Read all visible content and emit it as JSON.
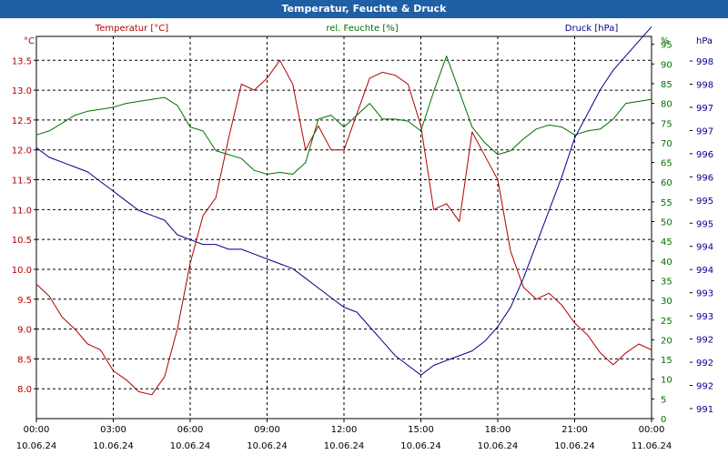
{
  "window": {
    "title": "Temperatur, Feuchte & Druck"
  },
  "chart_data": {
    "type": "line",
    "title": "Temperatur, Feuchte & Druck",
    "grid": true,
    "colors": {
      "temp": "#b00000",
      "hum": "#007000",
      "press": "#00008c",
      "grid": "#000000"
    },
    "legend": {
      "temp": "Temperatur [°C]",
      "hum": "rel. Feuchte [%]",
      "press": "Druck [hPa]"
    },
    "units": {
      "temp": "°C",
      "hum": "%",
      "press": "hPa"
    },
    "x_ticks": [
      {
        "time": "00:00",
        "date": "10.06.24"
      },
      {
        "time": "03:00",
        "date": "10.06.24"
      },
      {
        "time": "06:00",
        "date": "10.06.24"
      },
      {
        "time": "09:00",
        "date": "10.06.24"
      },
      {
        "time": "12:00",
        "date": "10.06.24"
      },
      {
        "time": "15:00",
        "date": "10.06.24"
      },
      {
        "time": "18:00",
        "date": "10.06.24"
      },
      {
        "time": "21:00",
        "date": "10.06.24"
      },
      {
        "time": "00:00",
        "date": "11.06.24"
      }
    ],
    "temp_ticks": [
      "8.0",
      "8.5",
      "9.0",
      "9.5",
      "10.0",
      "10.5",
      "11.0",
      "11.5",
      "12.0",
      "12.5",
      "13.0",
      "13.5"
    ],
    "hum_ticks": [
      "0",
      "5",
      "10",
      "15",
      "20",
      "25",
      "30",
      "35",
      "40",
      "45",
      "50",
      "55",
      "60",
      "65",
      "70",
      "75",
      "80",
      "85",
      "90",
      "95"
    ],
    "press_ticks": [
      "991",
      "992",
      "992",
      "992",
      "993",
      "993",
      "994",
      "994",
      "995",
      "995",
      "996",
      "996",
      "997",
      "997",
      "998",
      "998"
    ],
    "ranges": {
      "temp": [
        7.5,
        13.9
      ],
      "hum": [
        0,
        97
      ],
      "press": [
        990.7,
        998.6
      ]
    },
    "series": [
      {
        "key": "temp",
        "name": "Temperatur [°C]",
        "x": [
          0,
          0.5,
          1,
          1.5,
          2,
          2.5,
          3,
          3.5,
          4,
          4.5,
          5,
          5.5,
          6,
          6.5,
          7,
          7.5,
          8,
          8.5,
          9,
          9.5,
          10,
          10.5,
          11,
          11.5,
          12,
          12.5,
          13,
          13.5,
          14,
          14.5,
          15,
          15.5,
          16,
          16.5,
          17,
          17.5,
          18,
          18.5,
          19,
          19.5,
          20,
          20.5,
          21,
          21.5,
          22,
          22.5,
          23,
          23.5,
          24
        ],
        "values": [
          9.75,
          9.55,
          9.2,
          9.0,
          8.75,
          8.65,
          8.3,
          8.15,
          7.95,
          7.9,
          8.2,
          9.0,
          10.1,
          10.9,
          11.2,
          12.2,
          13.1,
          13.0,
          13.2,
          13.5,
          13.1,
          12.0,
          12.4,
          12.0,
          12.0,
          12.6,
          13.2,
          13.3,
          13.25,
          13.1,
          12.4,
          11.0,
          11.1,
          10.8,
          12.3,
          11.9,
          11.5,
          10.3,
          9.7,
          9.5,
          9.6,
          9.4,
          9.1,
          8.9,
          8.6,
          8.4,
          8.6,
          8.75,
          8.65
        ]
      },
      {
        "key": "hum",
        "name": "rel. Feuchte [%]",
        "x": [
          0,
          0.5,
          1,
          1.5,
          2,
          2.5,
          3,
          3.5,
          4,
          4.5,
          5,
          5.5,
          6,
          6.5,
          7,
          7.5,
          8,
          8.5,
          9,
          9.5,
          10,
          10.5,
          11,
          11.5,
          12,
          12.5,
          13,
          13.5,
          14,
          14.5,
          15,
          15.5,
          16,
          16.5,
          17,
          17.5,
          18,
          18.5,
          19,
          19.5,
          20,
          20.5,
          21,
          21.5,
          22,
          22.5,
          23,
          23.5,
          24
        ],
        "values": [
          72,
          73,
          75,
          77,
          78,
          78.5,
          79,
          80,
          80.5,
          81,
          81.5,
          79.5,
          74,
          73,
          68,
          67,
          66,
          63,
          62,
          62.5,
          62,
          65,
          76,
          77,
          74,
          77,
          80,
          76,
          76,
          75.5,
          73,
          83,
          92,
          83,
          74,
          70,
          67,
          68,
          71,
          73.5,
          74.5,
          74,
          72,
          73,
          73.5,
          76,
          80,
          80.5,
          81
        ]
      },
      {
        "key": "press",
        "name": "Druck [hPa]",
        "x": [
          0,
          0.5,
          1,
          1.5,
          2,
          2.5,
          3,
          3.5,
          4,
          4.5,
          5,
          5.5,
          6,
          6.5,
          7,
          7.5,
          8,
          8.5,
          9,
          9.5,
          10,
          10.5,
          11,
          11.5,
          12,
          12.5,
          13,
          13.5,
          14,
          14.5,
          15,
          15.5,
          16,
          16.5,
          17,
          17.5,
          18,
          18.5,
          19,
          19.5,
          20,
          20.5,
          21,
          21.5,
          22,
          22.5,
          23,
          23.5,
          24
        ],
        "values": [
          996.3,
          996.1,
          996.0,
          995.9,
          995.8,
          995.6,
          995.4,
          995.2,
          995.0,
          994.9,
          994.8,
          994.5,
          994.4,
          994.3,
          994.3,
          994.2,
          994.2,
          994.1,
          994.0,
          993.9,
          993.8,
          993.6,
          993.4,
          993.2,
          993.0,
          992.9,
          992.6,
          992.3,
          992.0,
          991.8,
          991.6,
          991.8,
          991.9,
          992.0,
          992.1,
          992.3,
          992.6,
          993.0,
          993.6,
          994.3,
          995.0,
          995.7,
          996.5,
          997.0,
          997.5,
          997.9,
          998.2,
          998.5,
          998.8
        ]
      }
    ]
  }
}
